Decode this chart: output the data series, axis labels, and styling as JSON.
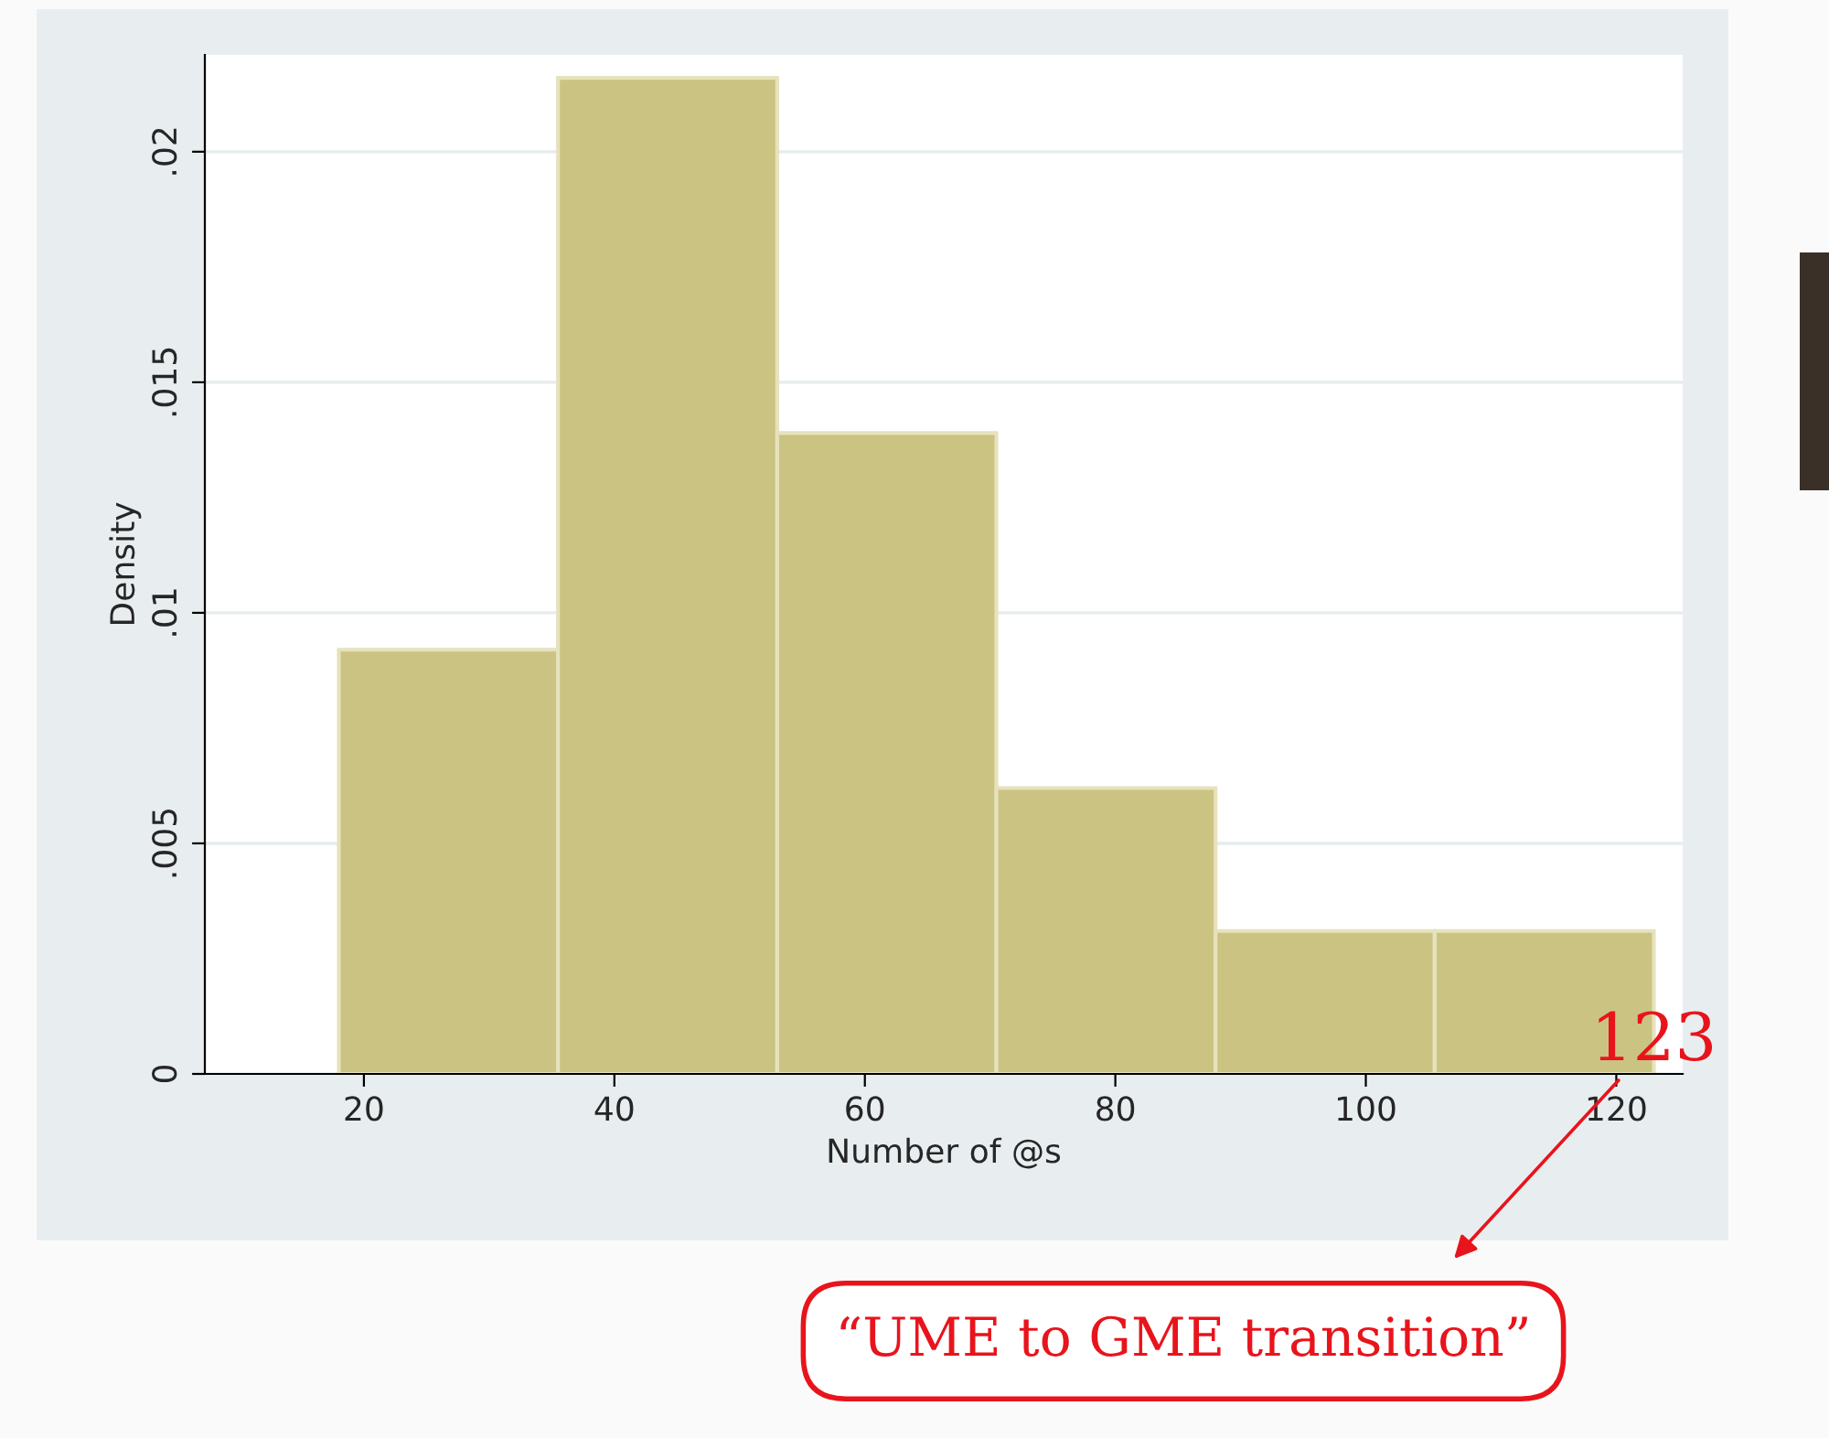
{
  "chart_data": {
    "type": "histogram",
    "xlabel": "Number of @s",
    "ylabel": "Density",
    "bins": [
      18,
      35.5,
      53,
      70.5,
      88,
      105.5,
      123
    ],
    "values": [
      0.0092,
      0.0216,
      0.0139,
      0.0062,
      0.0031,
      0.0031
    ],
    "color": "#cbc382",
    "xlim": [
      7.3,
      125.3
    ],
    "xticks": [
      20,
      40,
      60,
      80,
      100,
      120
    ],
    "ylim": [
      0,
      0.0221
    ],
    "yticks": [
      0,
      {
        "value": 0.005,
        "label": ".005"
      },
      {
        "value": 0.01,
        "label": ".01"
      },
      {
        "value": 0.015,
        "label": ".015"
      },
      {
        "value": 0.02,
        "label": ".02"
      }
    ],
    "grid": "y",
    "legend": false,
    "annotations": [
      {
        "text": "123",
        "x": 123,
        "y": 0
      },
      "“UME to GME transition”"
    ]
  }
}
